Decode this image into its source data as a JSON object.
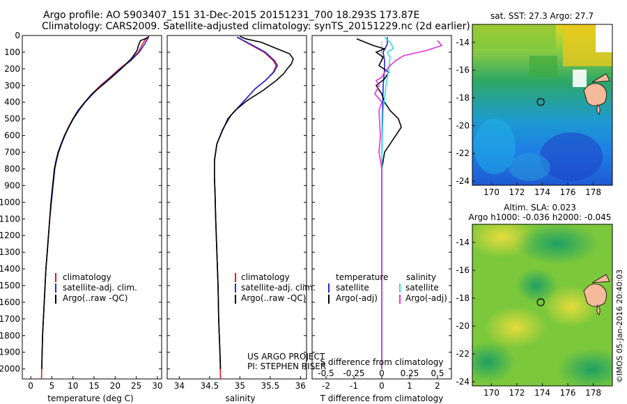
{
  "header": {
    "line1": "Argo profile: AO 5903407_151 31-Dec-2015 20151231_700 18.293S 173.87E",
    "line2": "Climatology: CARS2009. Satellite-adjusted climatology: synTS_20151229.nc (2d earlier)"
  },
  "project": {
    "line1": "US ARGO PROJECT",
    "line2": "PI: STEPHEN RISER"
  },
  "footer_stamp": "©IMOS 05-Jan-2016 20:40:03",
  "colors": {
    "climatology": "#e8141e",
    "satellite": "#1e28dc",
    "argo": "#000000",
    "sat_salinity": "#33dde0",
    "argo_salinity": "#e62fe0"
  },
  "chart_data": [
    {
      "type": "line",
      "name": "temperature-profile",
      "xlabel": "temperature (deg C)",
      "ylabel": "",
      "xlim": [
        -2,
        31
      ],
      "ylim": [
        2060,
        0
      ],
      "y_inverted": true,
      "xticks": [
        0,
        5,
        10,
        15,
        20,
        25,
        30
      ],
      "yticks": [
        0,
        100,
        200,
        300,
        400,
        500,
        600,
        700,
        800,
        900,
        1000,
        1100,
        1200,
        1300,
        1400,
        1500,
        1600,
        1700,
        1800,
        1900,
        2000
      ],
      "legend": [
        "climatology",
        "satellite-adj. clim.",
        "Argo(..raw -QC)"
      ],
      "series": [
        {
          "name": "climatology",
          "color": "#e8141e",
          "points": [
            [
              27.5,
              10
            ],
            [
              26.5,
              50
            ],
            [
              25.5,
              100
            ],
            [
              23.5,
              150
            ],
            [
              21,
              200
            ],
            [
              18.8,
              250
            ],
            [
              16.5,
              300
            ],
            [
              14.5,
              350
            ],
            [
              12.8,
              400
            ],
            [
              11.3,
              450
            ],
            [
              10,
              500
            ],
            [
              8.9,
              550
            ],
            [
              8,
              600
            ],
            [
              7.2,
              650
            ],
            [
              6.5,
              700
            ],
            [
              6,
              750
            ],
            [
              5.6,
              800
            ],
            [
              5.2,
              900
            ],
            [
              4.8,
              1000
            ],
            [
              4.5,
              1100
            ],
            [
              4.2,
              1200
            ],
            [
              3.9,
              1300
            ],
            [
              3.6,
              1400
            ],
            [
              3.4,
              1500
            ],
            [
              3.2,
              1600
            ],
            [
              3,
              1700
            ],
            [
              2.8,
              1800
            ],
            [
              2.7,
              1900
            ],
            [
              2.6,
              2000
            ],
            [
              2.55,
              2060
            ]
          ]
        },
        {
          "name": "satellite-adj. clim.",
          "color": "#1e28dc",
          "points": [
            [
              27.9,
              10
            ],
            [
              27,
              50
            ],
            [
              25.7,
              100
            ],
            [
              23.7,
              150
            ],
            [
              21.2,
              200
            ],
            [
              19,
              250
            ],
            [
              16.7,
              300
            ],
            [
              14.7,
              350
            ],
            [
              12.9,
              400
            ],
            [
              11.4,
              450
            ],
            [
              10.1,
              500
            ],
            [
              9,
              550
            ],
            [
              8.1,
              600
            ],
            [
              7.3,
              650
            ],
            [
              6.6,
              700
            ],
            [
              6.1,
              750
            ],
            [
              5.7,
              800
            ],
            [
              5.3,
              900
            ],
            [
              4.9,
              1000
            ],
            [
              4.5,
              1100
            ],
            [
              4.2,
              1200
            ],
            [
              3.9,
              1300
            ],
            [
              3.6,
              1400
            ],
            [
              3.4,
              1500
            ],
            [
              3.2,
              1600
            ],
            [
              3,
              1700
            ],
            [
              2.8,
              1800
            ],
            [
              2.7,
              1900
            ],
            [
              2.6,
              2000
            ]
          ]
        },
        {
          "name": "Argo(..raw -QC)",
          "color": "#000000",
          "points": [
            [
              28,
              5
            ],
            [
              27.6,
              15
            ],
            [
              26,
              30
            ],
            [
              25.5,
              60
            ],
            [
              25.2,
              90
            ],
            [
              23.8,
              140
            ],
            [
              21.4,
              200
            ],
            [
              19.2,
              250
            ],
            [
              16.9,
              300
            ],
            [
              14.5,
              350
            ],
            [
              12.8,
              400
            ],
            [
              11.2,
              450
            ],
            [
              10,
              500
            ],
            [
              9,
              550
            ],
            [
              8,
              600
            ],
            [
              7.2,
              650
            ],
            [
              6.5,
              700
            ],
            [
              6,
              750
            ],
            [
              5.6,
              800
            ],
            [
              5.2,
              900
            ],
            [
              4.8,
              1000
            ],
            [
              4.5,
              1100
            ],
            [
              4.2,
              1200
            ],
            [
              3.9,
              1300
            ],
            [
              3.6,
              1400
            ],
            [
              3.4,
              1500
            ],
            [
              3.2,
              1600
            ],
            [
              3,
              1700
            ],
            [
              2.8,
              1800
            ],
            [
              2.7,
              1900
            ],
            [
              2.6,
              2000
            ]
          ]
        }
      ]
    },
    {
      "type": "line",
      "name": "salinity-profile",
      "xlabel": "salinity",
      "ylabel": "",
      "xlim": [
        33.8,
        36.1
      ],
      "ylim": [
        2060,
        0
      ],
      "y_inverted": true,
      "xticks": [
        34,
        34.5,
        35,
        35.5,
        36
      ],
      "legend": [
        "climatology",
        "satellite-adj. clim.",
        "Argo(..raw -QC)"
      ],
      "series": [
        {
          "name": "climatology",
          "color": "#e8141e",
          "points": [
            [
              34.95,
              10
            ],
            [
              35.05,
              30
            ],
            [
              35.2,
              60
            ],
            [
              35.4,
              100
            ],
            [
              35.55,
              150
            ],
            [
              35.6,
              180
            ],
            [
              35.55,
              220
            ],
            [
              35.42,
              270
            ],
            [
              35.25,
              320
            ],
            [
              35.05,
              400
            ],
            [
              34.85,
              480
            ],
            [
              34.72,
              560
            ],
            [
              34.62,
              650
            ],
            [
              34.58,
              750
            ],
            [
              34.58,
              850
            ],
            [
              34.59,
              950
            ],
            [
              34.6,
              1100
            ],
            [
              34.62,
              1300
            ],
            [
              34.64,
              1500
            ],
            [
              34.65,
              1700
            ],
            [
              34.67,
              1900
            ],
            [
              34.68,
              2060
            ]
          ]
        },
        {
          "name": "satellite-adj. clim.",
          "color": "#1e28dc",
          "points": [
            [
              34.96,
              10
            ],
            [
              35.06,
              30
            ],
            [
              35.22,
              60
            ],
            [
              35.42,
              100
            ],
            [
              35.57,
              150
            ],
            [
              35.62,
              180
            ],
            [
              35.56,
              220
            ],
            [
              35.42,
              270
            ],
            [
              35.25,
              320
            ],
            [
              35.05,
              400
            ],
            [
              34.85,
              480
            ],
            [
              34.72,
              560
            ],
            [
              34.62,
              650
            ],
            [
              34.58,
              750
            ],
            [
              34.58,
              850
            ],
            [
              34.59,
              950
            ],
            [
              34.6,
              1100
            ],
            [
              34.62,
              1300
            ],
            [
              34.64,
              1500
            ],
            [
              34.65,
              1700
            ],
            [
              34.67,
              1900
            ],
            [
              34.68,
              2000
            ]
          ]
        },
        {
          "name": "Argo(..raw -QC)",
          "color": "#000000",
          "points": [
            [
              35,
              5
            ],
            [
              35.1,
              20
            ],
            [
              35.35,
              40
            ],
            [
              35.55,
              70
            ],
            [
              35.82,
              110
            ],
            [
              35.88,
              140
            ],
            [
              35.85,
              170
            ],
            [
              35.78,
              200
            ],
            [
              35.72,
              230
            ],
            [
              35.6,
              270
            ],
            [
              35.38,
              330
            ],
            [
              35.12,
              390
            ],
            [
              34.92,
              450
            ],
            [
              34.8,
              500
            ],
            [
              34.7,
              580
            ],
            [
              34.62,
              650
            ],
            [
              34.58,
              750
            ],
            [
              34.58,
              850
            ],
            [
              34.59,
              950
            ],
            [
              34.6,
              1100
            ],
            [
              34.62,
              1300
            ],
            [
              34.64,
              1500
            ],
            [
              34.65,
              1700
            ],
            [
              34.67,
              1900
            ],
            [
              34.68,
              2000
            ]
          ]
        }
      ]
    },
    {
      "type": "line",
      "name": "difference-profile",
      "xlabel": "T difference from climatology",
      "xlabel_top": "S difference from climatology",
      "xlim": [
        -2.5,
        2.5
      ],
      "ylim": [
        2060,
        0
      ],
      "y_inverted": true,
      "xticks_T": [
        -2,
        -1,
        0,
        1,
        2
      ],
      "xticks_S": [
        "-0.5",
        "-0.25",
        "0",
        "0.25",
        "0.5"
      ],
      "legend": {
        "temperature_heading": "temperature",
        "salinity_heading": "salinity",
        "items": [
          "satellite",
          "Argo(-adj)",
          "satellite",
          "Argo(-adj)"
        ]
      },
      "series": [
        {
          "name": "temperature satellite",
          "color": "#1e28dc",
          "points": [
            [
              0.2,
              10
            ],
            [
              0.2,
              50
            ],
            [
              0.05,
              100
            ],
            [
              0.1,
              150
            ],
            [
              0.1,
              200
            ],
            [
              0.05,
              300
            ],
            [
              0.02,
              500
            ],
            [
              0,
              800
            ],
            [
              0,
              1200
            ],
            [
              0,
              1600
            ],
            [
              0,
              2000
            ]
          ]
        },
        {
          "name": "temperature Argo(-adj)",
          "color": "#000000",
          "points": [
            [
              -0.9,
              20
            ],
            [
              -0.6,
              40
            ],
            [
              -0.3,
              60
            ],
            [
              0.1,
              80
            ],
            [
              -0.2,
              100
            ],
            [
              0.05,
              130
            ],
            [
              -0.1,
              180
            ],
            [
              0.25,
              220
            ],
            [
              0.1,
              260
            ],
            [
              -0.2,
              300
            ],
            [
              0,
              350
            ],
            [
              0.1,
              400
            ],
            [
              0.3,
              450
            ],
            [
              0.6,
              500
            ],
            [
              0.7,
              550
            ],
            [
              0.5,
              600
            ],
            [
              0.3,
              650
            ],
            [
              0.1,
              700
            ],
            [
              0,
              800
            ],
            [
              0,
              1000
            ],
            [
              0,
              1500
            ],
            [
              0,
              2000
            ]
          ]
        },
        {
          "name": "salinity satellite",
          "color": "#33dde0",
          "points": [
            [
              0.1,
              10
            ],
            [
              0.35,
              50
            ],
            [
              0.4,
              80
            ],
            [
              0.2,
              100
            ],
            [
              0.3,
              130
            ],
            [
              0.25,
              200
            ],
            [
              0.15,
              300
            ],
            [
              0.05,
              450
            ],
            [
              0.02,
              600
            ],
            [
              0,
              800
            ],
            [
              0,
              1200
            ],
            [
              0,
              1600
            ],
            [
              0,
              2000
            ]
          ]
        },
        {
          "name": "salinity Argo(-adj)",
          "color": "#e62fe0",
          "points": [
            [
              2,
              30
            ],
            [
              2.15,
              60
            ],
            [
              1.6,
              90
            ],
            [
              0.8,
              120
            ],
            [
              0.5,
              150
            ],
            [
              0.3,
              180
            ],
            [
              0.1,
              220
            ],
            [
              0,
              250
            ],
            [
              -0.2,
              270
            ],
            [
              -0.1,
              300
            ],
            [
              -0.25,
              350
            ],
            [
              0,
              400
            ],
            [
              -0.1,
              450
            ],
            [
              -0.05,
              600
            ],
            [
              -0.1,
              700
            ],
            [
              0,
              800
            ],
            [
              0,
              1000
            ],
            [
              0,
              1500
            ],
            [
              0,
              2000
            ]
          ]
        }
      ]
    },
    {
      "type": "heatmap",
      "name": "sst-map",
      "title": "sat. SST: 27.3  Argo: 27.7",
      "xticks": [
        "170",
        "172",
        "174",
        "176",
        "178"
      ],
      "yticks": [
        "-14",
        "-16",
        "-18",
        "-20",
        "-22",
        "-24"
      ],
      "xlim": [
        168.5,
        179.5
      ],
      "ylim": [
        -24.3,
        -12.7
      ],
      "argo_position": [
        173.87,
        -18.293
      ]
    },
    {
      "type": "heatmap",
      "name": "sla-map",
      "title": "Altim. SLA: 0.023",
      "subtitle": "Argo h1000: -0.036  h2000: -0.045",
      "xticks": [
        "170",
        "172",
        "174",
        "176",
        "178"
      ],
      "yticks": [
        "-14",
        "-16",
        "-18",
        "-20",
        "-22",
        "-24"
      ],
      "xlim": [
        168.5,
        179.5
      ],
      "ylim": [
        -24.3,
        -12.7
      ],
      "argo_position": [
        173.87,
        -18.293
      ]
    }
  ],
  "legend_text": {
    "climatology": "climatology",
    "satellite_adj": "satellite-adj. clim.",
    "argo_raw": "Argo(..raw -QC)"
  }
}
